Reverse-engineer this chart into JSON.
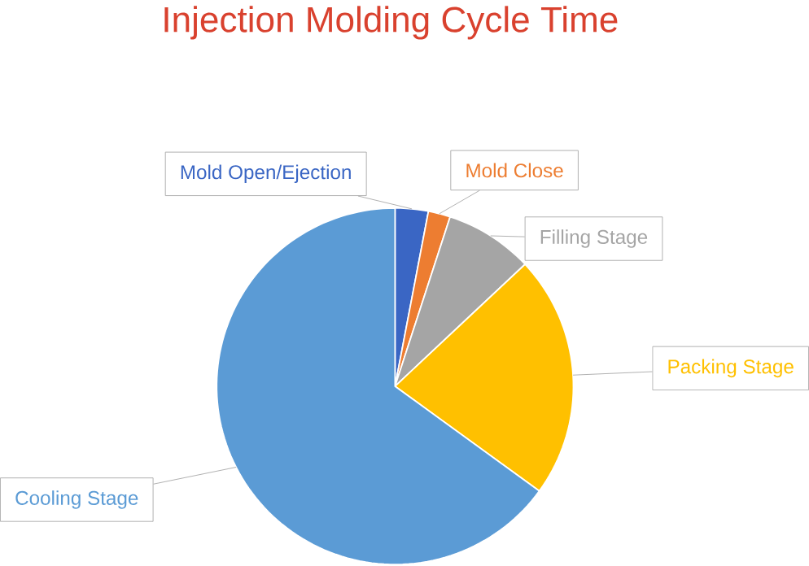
{
  "chart_data": {
    "type": "pie",
    "title": "Injection Molding Cycle Time",
    "categories": [
      "Mold Open/Ejection",
      "Mold Close",
      "Filling Stage",
      "Packing Stage",
      "Cooling Stage"
    ],
    "values": [
      3,
      2,
      8,
      22,
      65
    ],
    "colors": [
      "#3a66c4",
      "#ed7d31",
      "#a5a5a5",
      "#ffc000",
      "#5b9bd5"
    ]
  }
}
